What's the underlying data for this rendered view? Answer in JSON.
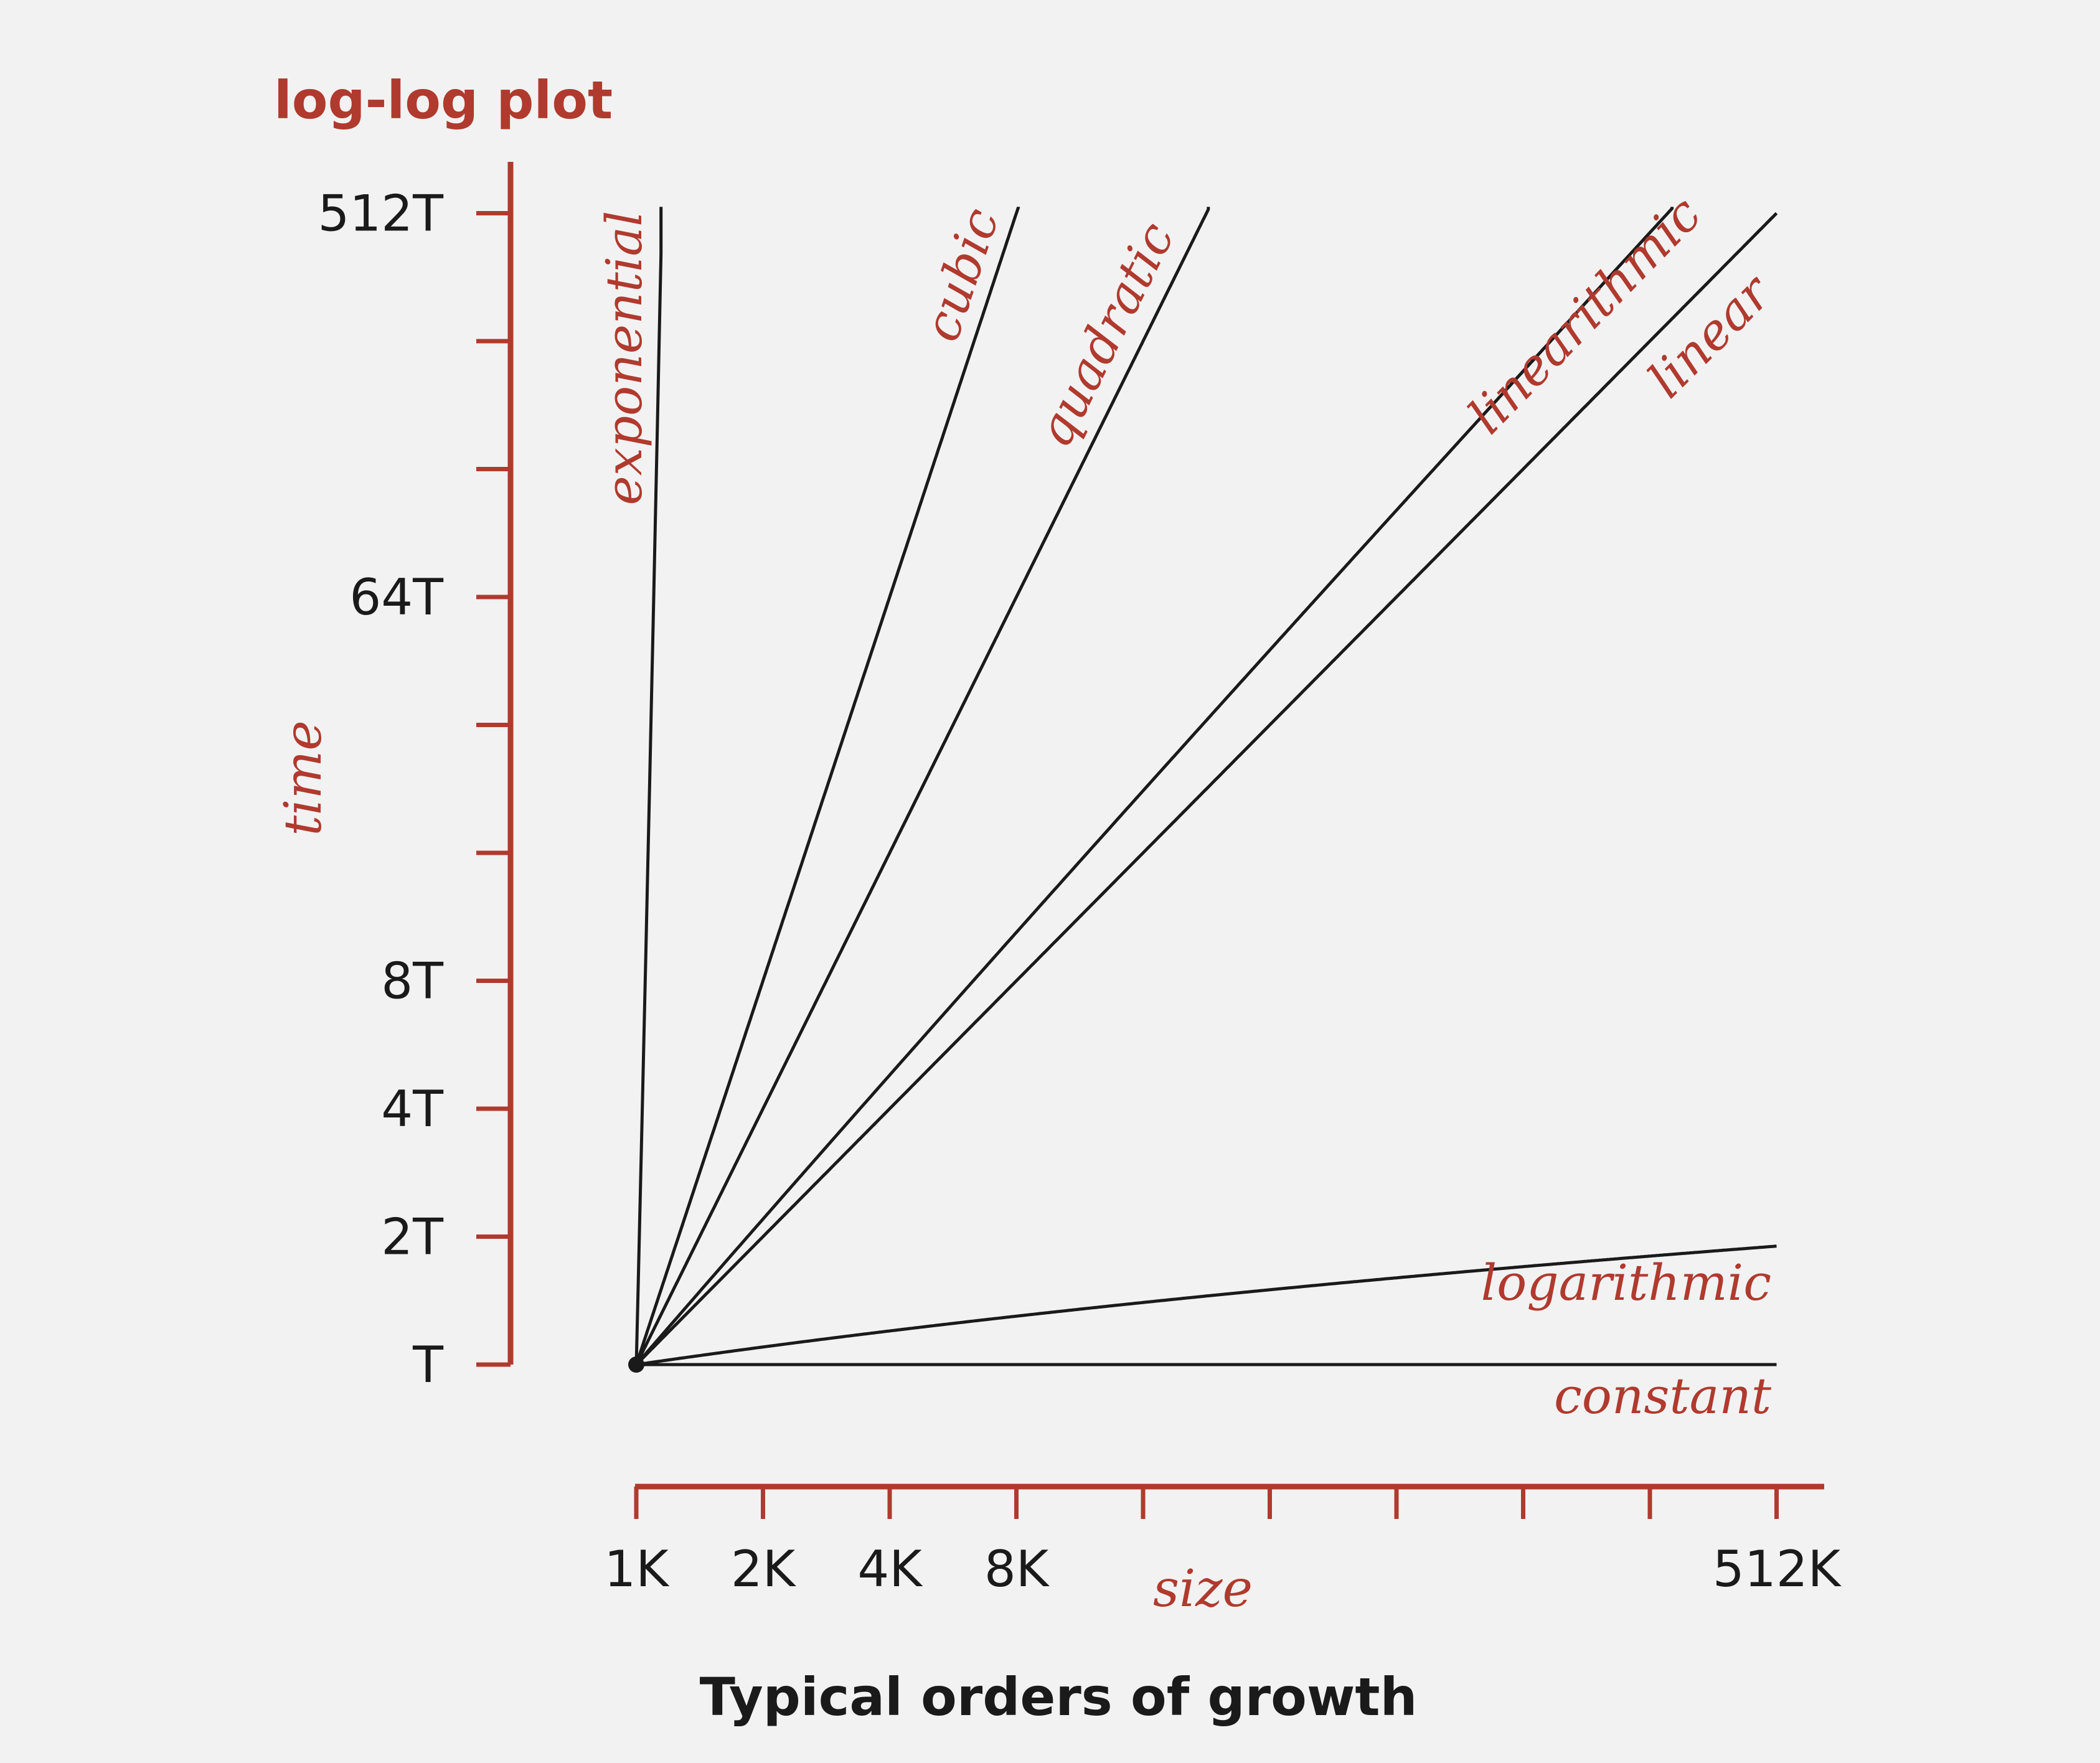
{
  "chart_data": {
    "type": "line",
    "title": "log-log plot",
    "xlabel": "size",
    "ylabel": "time",
    "caption": "Typical orders of growth",
    "x_scale": "log",
    "y_scale": "log",
    "x_ticks": [
      "1K",
      "2K",
      "4K",
      "8K",
      "16K",
      "32K",
      "64K",
      "128K",
      "256K",
      "512K"
    ],
    "x_tick_labels": [
      "1K",
      "2K",
      "4K",
      "8K",
      "",
      "",
      "",
      "",
      "",
      "512K"
    ],
    "y_ticks": [
      "T",
      "2T",
      "4T",
      "8T",
      "16T",
      "32T",
      "64T",
      "128T",
      "256T",
      "512T"
    ],
    "y_tick_labels": [
      "T",
      "2T",
      "4T",
      "8T",
      "",
      "",
      "64T",
      "",
      "",
      "512T"
    ],
    "xlim": [
      1,
      512
    ],
    "ylim": [
      1,
      512
    ],
    "grid": false,
    "legend": "none",
    "series": [
      {
        "name": "exponential"
      },
      {
        "name": "cubic"
      },
      {
        "name": "quadratic"
      },
      {
        "name": "linearithmic"
      },
      {
        "name": "linear"
      },
      {
        "name": "logarithmic"
      },
      {
        "name": "constant"
      }
    ],
    "colors": {
      "accent": "#b03a2e",
      "line": "#1a1a1a",
      "background": "#f2f2f2"
    }
  }
}
